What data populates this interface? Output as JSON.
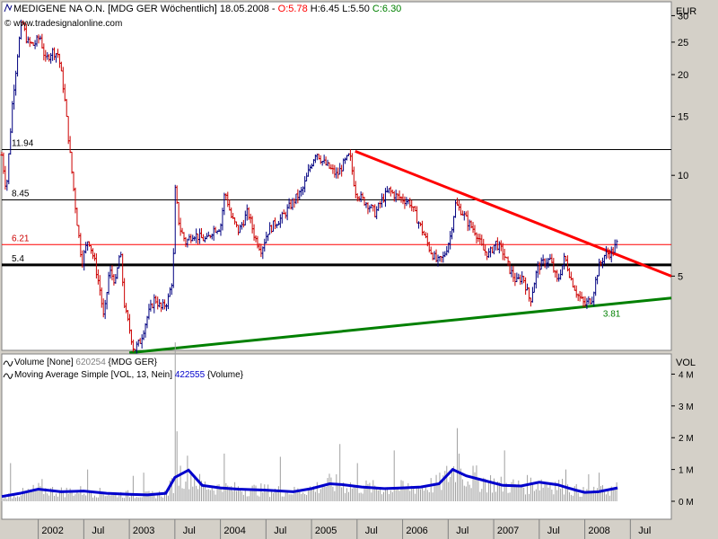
{
  "header": {
    "instrument": "MEDIGENE NA O.N. [MDG GER  Wöchentlich] 18.05.2008 -",
    "open_label": "O:5.78",
    "high_low_label": "H:6.45 L:5.50",
    "close_label": "C:6.30",
    "copyright": "© www.tradesignalonline.com"
  },
  "volume_legend": {
    "line1_name": "Volume [None]",
    "line1_value": "620254",
    "line1_source": "{MDG GER}",
    "line2_name": "Moving Average Simple [VOL, 13, Nein]",
    "line2_value": "422555",
    "line2_source": "{Volume}"
  },
  "colors": {
    "frame_bg": "#d4d0c8",
    "plot_bg": "#ffffff",
    "price_bar": "#000080",
    "price_bar_down": "#cc0000",
    "resistance_line": "#ff0000",
    "support_line": "#008000",
    "volume_bar": "#a0a0a0",
    "volume_ma": "#0000cc",
    "open_color": "#ff0000",
    "close_color": "#008000"
  },
  "chart_data": [
    {
      "type": "candlestick",
      "scale": "log",
      "y_unit_label": "EUR",
      "y_ticks": [
        5,
        10,
        15,
        20,
        25,
        30
      ],
      "ylim": [
        3,
        33
      ],
      "x_ticks": [
        "2002",
        "Jul",
        "2003",
        "Jul",
        "2004",
        "Jul",
        "2005",
        "Jul",
        "2006",
        "Jul",
        "2007",
        "Jul",
        "2008",
        "Jul"
      ],
      "x_tick_dates": [
        2002.0,
        2002.5,
        2003.0,
        2003.5,
        2004.0,
        2004.5,
        2005.0,
        2005.5,
        2006.0,
        2006.5,
        2007.0,
        2007.5,
        2008.0,
        2008.5
      ],
      "xlim": [
        2001.6,
        2008.95
      ],
      "horizontal_levels": [
        {
          "label": "11.94",
          "value": 11.94,
          "color": "#000000",
          "width": 1
        },
        {
          "label": "8.45",
          "value": 8.45,
          "color": "#000000",
          "width": 1
        },
        {
          "label": "6.21",
          "value": 6.21,
          "color": "#ff0000",
          "width": 1
        },
        {
          "label": "5.4",
          "value": 5.4,
          "color": "#000000",
          "width": 3
        }
      ],
      "trendlines": [
        {
          "name": "resistance",
          "color": "#ff0000",
          "points": [
            [
              2005.48,
              11.8
            ],
            [
              2008.95,
              5.0
            ]
          ]
        },
        {
          "name": "support",
          "color": "#008000",
          "label": "3.81",
          "points": [
            [
              2003.0,
              2.95
            ],
            [
              2008.95,
              4.3
            ]
          ]
        }
      ],
      "price_path": [
        [
          2001.6,
          11.5
        ],
        [
          2001.65,
          9.0
        ],
        [
          2001.72,
          17.0
        ],
        [
          2001.78,
          24.0
        ],
        [
          2001.82,
          29.0
        ],
        [
          2001.88,
          25.0
        ],
        [
          2001.95,
          24.5
        ],
        [
          2002.02,
          26.0
        ],
        [
          2002.08,
          22.0
        ],
        [
          2002.15,
          23.5
        ],
        [
          2002.22,
          23.0
        ],
        [
          2002.28,
          18.0
        ],
        [
          2002.35,
          11.5
        ],
        [
          2002.42,
          7.5
        ],
        [
          2002.48,
          5.5
        ],
        [
          2002.55,
          6.5
        ],
        [
          2002.62,
          5.5
        ],
        [
          2002.68,
          4.5
        ],
        [
          2002.72,
          3.7
        ],
        [
          2002.78,
          5.2
        ],
        [
          2002.85,
          4.8
        ],
        [
          2002.9,
          6.0
        ],
        [
          2002.95,
          4.0
        ],
        [
          2003.0,
          3.5
        ],
        [
          2003.05,
          3.0
        ],
        [
          2003.12,
          3.2
        ],
        [
          2003.2,
          3.8
        ],
        [
          2003.28,
          4.3
        ],
        [
          2003.35,
          4.0
        ],
        [
          2003.42,
          4.2
        ],
        [
          2003.48,
          5.0
        ],
        [
          2003.5,
          9.2
        ],
        [
          2003.55,
          7.0
        ],
        [
          2003.62,
          6.3
        ],
        [
          2003.7,
          6.7
        ],
        [
          2003.78,
          6.5
        ],
        [
          2003.85,
          6.4
        ],
        [
          2003.92,
          6.9
        ],
        [
          2004.0,
          7.0
        ],
        [
          2004.05,
          9.0
        ],
        [
          2004.12,
          7.5
        ],
        [
          2004.2,
          6.8
        ],
        [
          2004.3,
          7.8
        ],
        [
          2004.38,
          6.5
        ],
        [
          2004.45,
          6.0
        ],
        [
          2004.52,
          6.8
        ],
        [
          2004.6,
          7.2
        ],
        [
          2004.68,
          7.5
        ],
        [
          2004.75,
          8.0
        ],
        [
          2004.82,
          8.5
        ],
        [
          2004.9,
          9.0
        ],
        [
          2004.98,
          10.5
        ],
        [
          2005.05,
          11.8
        ],
        [
          2005.12,
          11.0
        ],
        [
          2005.2,
          10.5
        ],
        [
          2005.28,
          10.0
        ],
        [
          2005.35,
          10.8
        ],
        [
          2005.42,
          11.5
        ],
        [
          2005.48,
          9.0
        ],
        [
          2005.55,
          8.5
        ],
        [
          2005.62,
          8.2
        ],
        [
          2005.7,
          7.7
        ],
        [
          2005.78,
          8.5
        ],
        [
          2005.85,
          9.0
        ],
        [
          2005.92,
          8.7
        ],
        [
          2006.0,
          8.5
        ],
        [
          2006.08,
          8.3
        ],
        [
          2006.15,
          7.5
        ],
        [
          2006.22,
          6.8
        ],
        [
          2006.3,
          6.0
        ],
        [
          2006.38,
          5.5
        ],
        [
          2006.45,
          5.7
        ],
        [
          2006.52,
          6.5
        ],
        [
          2006.58,
          8.2
        ],
        [
          2006.65,
          7.8
        ],
        [
          2006.72,
          7.2
        ],
        [
          2006.8,
          6.8
        ],
        [
          2006.88,
          6.0
        ],
        [
          2006.95,
          5.8
        ],
        [
          2007.02,
          6.3
        ],
        [
          2007.1,
          5.9
        ],
        [
          2007.18,
          5.2
        ],
        [
          2007.25,
          4.8
        ],
        [
          2007.32,
          5.0
        ],
        [
          2007.4,
          4.2
        ],
        [
          2007.48,
          5.3
        ],
        [
          2007.55,
          5.5
        ],
        [
          2007.62,
          5.6
        ],
        [
          2007.7,
          4.8
        ],
        [
          2007.78,
          5.7
        ],
        [
          2007.85,
          4.9
        ],
        [
          2007.92,
          4.4
        ],
        [
          2008.0,
          4.1
        ],
        [
          2008.08,
          4.3
        ],
        [
          2008.15,
          5.3
        ],
        [
          2008.22,
          5.8
        ],
        [
          2008.3,
          5.9
        ],
        [
          2008.36,
          6.3
        ]
      ]
    },
    {
      "type": "bar",
      "y_unit_label": "VOL",
      "y_ticks": [
        "0 M",
        "1 M",
        "2 M",
        "3 M",
        "4 M"
      ],
      "y_tick_values": [
        0,
        1000000,
        2000000,
        3000000,
        4000000
      ],
      "ylim": [
        0,
        5200000
      ],
      "spikes": [
        [
          2001.7,
          1200000
        ],
        [
          2002.05,
          700000
        ],
        [
          2002.55,
          1000000
        ],
        [
          2003.05,
          800000
        ],
        [
          2003.15,
          900000
        ],
        [
          2003.5,
          5000000
        ],
        [
          2003.52,
          2200000
        ],
        [
          2004.05,
          1500000
        ],
        [
          2004.65,
          1400000
        ],
        [
          2005.32,
          1800000
        ],
        [
          2005.5,
          1200000
        ],
        [
          2005.9,
          1600000
        ],
        [
          2006.6,
          2300000
        ],
        [
          2006.62,
          1500000
        ],
        [
          2007.12,
          1600000
        ],
        [
          2007.8,
          1000000
        ],
        [
          2008.05,
          850000
        ],
        [
          2008.15,
          900000
        ]
      ],
      "ma_path": [
        [
          2001.6,
          150000
        ],
        [
          2001.8,
          250000
        ],
        [
          2002.0,
          380000
        ],
        [
          2002.25,
          300000
        ],
        [
          2002.5,
          320000
        ],
        [
          2002.75,
          250000
        ],
        [
          2003.0,
          220000
        ],
        [
          2003.2,
          200000
        ],
        [
          2003.4,
          250000
        ],
        [
          2003.5,
          750000
        ],
        [
          2003.65,
          980000
        ],
        [
          2003.8,
          500000
        ],
        [
          2004.0,
          420000
        ],
        [
          2004.2,
          380000
        ],
        [
          2004.5,
          350000
        ],
        [
          2004.8,
          300000
        ],
        [
          2005.0,
          400000
        ],
        [
          2005.2,
          550000
        ],
        [
          2005.35,
          520000
        ],
        [
          2005.55,
          450000
        ],
        [
          2005.8,
          400000
        ],
        [
          2006.0,
          420000
        ],
        [
          2006.2,
          450000
        ],
        [
          2006.4,
          550000
        ],
        [
          2006.55,
          1000000
        ],
        [
          2006.7,
          800000
        ],
        [
          2006.9,
          650000
        ],
        [
          2007.1,
          500000
        ],
        [
          2007.3,
          480000
        ],
        [
          2007.5,
          600000
        ],
        [
          2007.7,
          520000
        ],
        [
          2007.9,
          350000
        ],
        [
          2008.0,
          280000
        ],
        [
          2008.15,
          300000
        ],
        [
          2008.36,
          420000
        ]
      ]
    }
  ]
}
